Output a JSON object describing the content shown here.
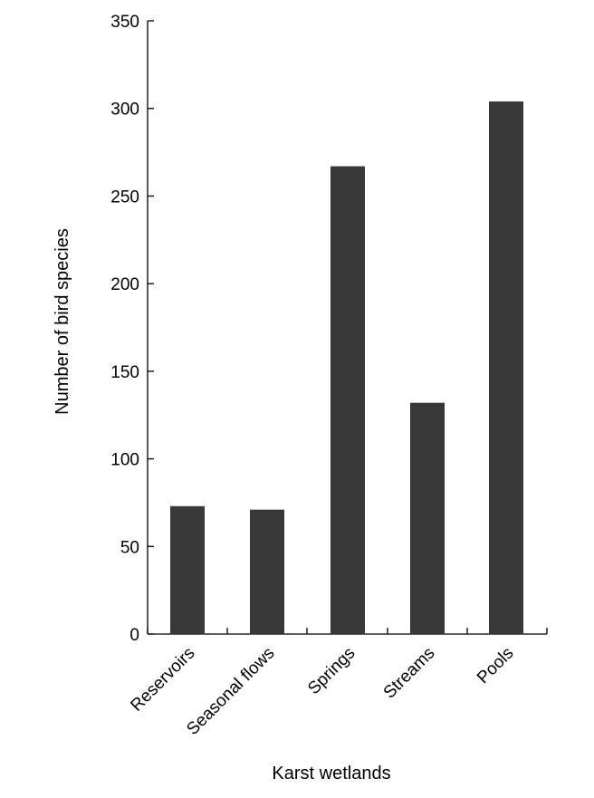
{
  "chart_data": {
    "type": "bar",
    "categories": [
      "Reservoirs",
      "Seasonal flows",
      "Springs",
      "Streams",
      "Pools"
    ],
    "values": [
      73,
      71,
      267,
      132,
      304
    ],
    "xlabel": "Karst wetlands",
    "ylabel": "Number of bird species",
    "ylim": [
      0,
      350
    ],
    "yticks": [
      0,
      50,
      100,
      150,
      200,
      250,
      300,
      350
    ],
    "bar_color": "#383838",
    "grid": false,
    "legend": "none"
  }
}
